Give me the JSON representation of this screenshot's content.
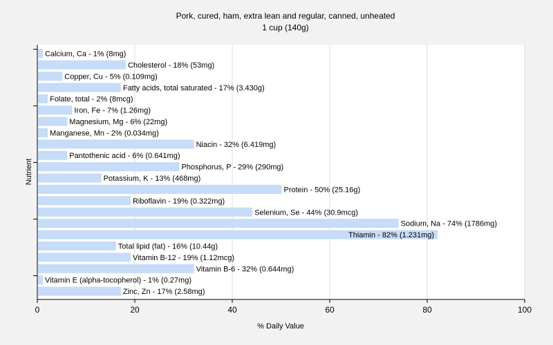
{
  "chart_data": {
    "type": "bar",
    "orientation": "horizontal",
    "title": "Pork, cured, ham, extra lean and regular, canned, unheated",
    "subtitle": "1 cup (140g)",
    "xlabel": "% Daily Value",
    "ylabel": "Nutrient",
    "xlim": [
      0,
      100
    ],
    "xticks": [
      "0",
      "20",
      "40",
      "60",
      "80",
      "100"
    ],
    "grid": true,
    "bar_color": "#c6dcf8",
    "background": "#f2f2f2",
    "plot_background": "#ffffff",
    "categories": [
      "Calcium, Ca",
      "Cholesterol",
      "Copper, Cu",
      "Fatty acids, total saturated",
      "Folate, total",
      "Iron, Fe",
      "Magnesium, Mg",
      "Manganese, Mn",
      "Niacin",
      "Pantothenic acid",
      "Phosphorus, P",
      "Potassium, K",
      "Protein",
      "Riboflavin",
      "Selenium, Se",
      "Sodium, Na",
      "Thiamin",
      "Total lipid (fat)",
      "Vitamin B-12",
      "Vitamin B-6",
      "Vitamin E (alpha-tocopherol)",
      "Zinc, Zn"
    ],
    "values": [
      1,
      18,
      5,
      17,
      2,
      7,
      6,
      2,
      32,
      6,
      29,
      13,
      50,
      19,
      44,
      74,
      82,
      16,
      19,
      32,
      1,
      17
    ],
    "bar_labels": [
      "Calcium, Ca - 1% (8mg)",
      "Cholesterol - 18% (53mg)",
      "Copper, Cu - 5% (0.109mg)",
      "Fatty acids, total saturated - 17% (3.430g)",
      "Folate, total - 2% (8mcg)",
      "Iron, Fe - 7% (1.26mg)",
      "Magnesium, Mg - 6% (22mg)",
      "Manganese, Mn - 2% (0.034mg)",
      "Niacin - 32% (6.419mg)",
      "Pantothenic acid - 6% (0.641mg)",
      "Phosphorus, P - 29% (290mg)",
      "Potassium, K - 13% (468mg)",
      "Protein - 50% (25.16g)",
      "Riboflavin - 19% (0.322mg)",
      "Selenium, Se - 44% (30.9mcg)",
      "Sodium, Na - 74% (1786mg)",
      "Thiamin - 82% (1.231mg)",
      "Total lipid (fat) - 16% (10.44g)",
      "Vitamin B-12 - 19% (1.12mcg)",
      "Vitamin B-6 - 32% (0.644mg)",
      "Vitamin E (alpha-tocopherol) - 1% (0.27mg)",
      "Zinc, Zn - 17% (2.58mg)"
    ]
  }
}
